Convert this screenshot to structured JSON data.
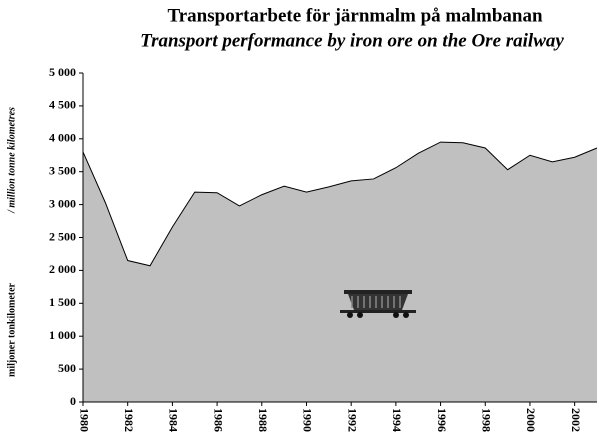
{
  "chart_data": {
    "type": "area",
    "title": "Transportarbete för järnmalm på malmbanan",
    "subtitle": "Transport performance by iron ore on the Ore railway",
    "y_label": "miljoner tonkilometer",
    "y_label_en": "/ million tonne kilometres",
    "x": [
      1980,
      1981,
      1982,
      1983,
      1984,
      1985,
      1986,
      1987,
      1988,
      1989,
      1990,
      1991,
      1992,
      1993,
      1994,
      1995,
      1996,
      1997,
      1998,
      1999,
      2000,
      2001,
      2002,
      2003
    ],
    "values": [
      3800,
      3030,
      2150,
      2070,
      2660,
      3190,
      3180,
      2980,
      3150,
      3280,
      3190,
      3270,
      3360,
      3390,
      3560,
      3780,
      3950,
      3940,
      3860,
      3530,
      3750,
      3650,
      3720,
      3860
    ],
    "color": "#c0c0c0",
    "xlim": [
      1980,
      2003
    ],
    "xticks": [
      1980,
      1982,
      1984,
      1986,
      1988,
      1990,
      1992,
      1994,
      1996,
      1998,
      2000,
      2002
    ],
    "ylim": [
      0,
      5000
    ],
    "yticks": [
      0,
      500,
      {
        "value": 1000,
        "label": "1 000"
      },
      {
        "value": 1500,
        "label": "1 500"
      },
      {
        "value": 2000,
        "label": "2 000"
      },
      {
        "value": 2500,
        "label": "2 500"
      },
      {
        "value": 3000,
        "label": "3 000"
      },
      {
        "value": 3500,
        "label": "3 500"
      },
      {
        "value": 4000,
        "label": "4 000"
      },
      {
        "value": 4500,
        "label": "4 500"
      },
      {
        "value": 5000,
        "label": "5 000"
      }
    ]
  }
}
